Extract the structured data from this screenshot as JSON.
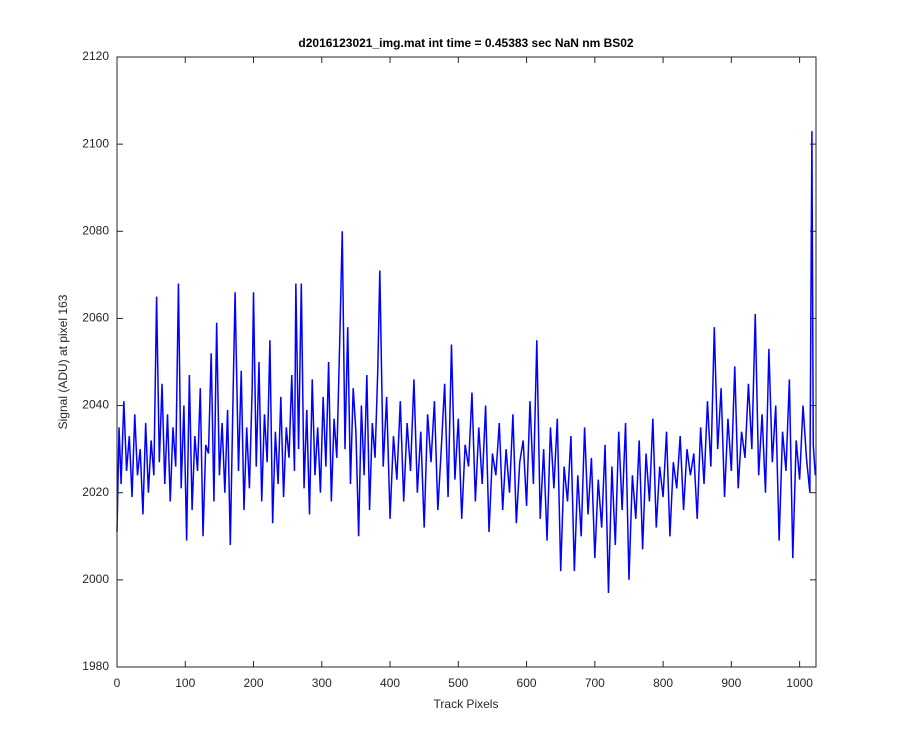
{
  "chart_data": {
    "type": "line",
    "title": "d2016123021_img.mat int time = 0.45383 sec  NaN nm BS02",
    "x_label": "Track Pixels",
    "y_label": "Signal (ADU) at pixel 163",
    "xlim": [
      0,
      1024
    ],
    "ylim": [
      1980,
      2120
    ],
    "xticks": [
      0,
      100,
      200,
      300,
      400,
      500,
      600,
      700,
      800,
      900,
      1000
    ],
    "yticks": [
      1980,
      2000,
      2020,
      2040,
      2060,
      2080,
      2100,
      2120
    ],
    "grid": false,
    "x": [
      0,
      3,
      6,
      10,
      14,
      18,
      22,
      26,
      30,
      34,
      38,
      42,
      46,
      50,
      54,
      58,
      62,
      66,
      70,
      74,
      78,
      82,
      86,
      90,
      94,
      98,
      102,
      106,
      110,
      114,
      118,
      122,
      126,
      130,
      134,
      138,
      142,
      146,
      150,
      154,
      158,
      162,
      166,
      170,
      173,
      178,
      182,
      186,
      190,
      194,
      198,
      200,
      204,
      208,
      212,
      216,
      220,
      224,
      228,
      232,
      236,
      240,
      244,
      248,
      252,
      256,
      260,
      262,
      266,
      270,
      274,
      278,
      282,
      286,
      290,
      294,
      298,
      302,
      306,
      310,
      314,
      318,
      322,
      326,
      330,
      334,
      338,
      342,
      346,
      350,
      354,
      358,
      362,
      366,
      370,
      374,
      378,
      382,
      385,
      390,
      395,
      400,
      405,
      410,
      415,
      420,
      425,
      430,
      435,
      440,
      445,
      450,
      455,
      460,
      465,
      470,
      475,
      480,
      485,
      490,
      495,
      500,
      505,
      510,
      515,
      520,
      525,
      530,
      535,
      540,
      545,
      550,
      555,
      560,
      565,
      570,
      575,
      580,
      585,
      590,
      595,
      600,
      605,
      610,
      615,
      620,
      625,
      630,
      635,
      640,
      645,
      650,
      655,
      660,
      665,
      670,
      675,
      680,
      685,
      690,
      695,
      700,
      705,
      710,
      715,
      720,
      725,
      730,
      735,
      740,
      745,
      750,
      755,
      760,
      765,
      770,
      775,
      780,
      785,
      790,
      795,
      800,
      805,
      810,
      815,
      820,
      825,
      830,
      835,
      840,
      845,
      850,
      855,
      860,
      865,
      870,
      875,
      880,
      885,
      890,
      895,
      900,
      905,
      910,
      915,
      920,
      925,
      930,
      935,
      940,
      945,
      950,
      955,
      960,
      965,
      970,
      975,
      980,
      985,
      990,
      995,
      1000,
      1005,
      1010,
      1015,
      1018,
      1020,
      1023
    ],
    "series": [
      {
        "color": "#0000ff",
        "values": [
          2011,
          2035,
          2022,
          2041,
          2025,
          2033,
          2019,
          2038,
          2024,
          2030,
          2015,
          2036,
          2020,
          2032,
          2024,
          2065,
          2027,
          2045,
          2022,
          2038,
          2018,
          2035,
          2026,
          2068,
          2021,
          2040,
          2009,
          2047,
          2016,
          2033,
          2025,
          2044,
          2010,
          2031,
          2029,
          2052,
          2018,
          2059,
          2024,
          2036,
          2020,
          2039,
          2008,
          2042,
          2066,
          2025,
          2048,
          2016,
          2035,
          2021,
          2044,
          2066,
          2026,
          2050,
          2018,
          2038,
          2027,
          2055,
          2013,
          2034,
          2022,
          2042,
          2019,
          2035,
          2028,
          2047,
          2025,
          2068,
          2030,
          2068,
          2021,
          2039,
          2015,
          2046,
          2024,
          2035,
          2020,
          2042,
          2026,
          2050,
          2018,
          2037,
          2028,
          2053,
          2080,
          2030,
          2058,
          2022,
          2044,
          2034,
          2010,
          2040,
          2024,
          2047,
          2016,
          2036,
          2028,
          2048,
          2071,
          2026,
          2042,
          2014,
          2033,
          2023,
          2041,
          2018,
          2036,
          2025,
          2046,
          2020,
          2034,
          2012,
          2038,
          2027,
          2041,
          2016,
          2030,
          2045,
          2019,
          2054,
          2023,
          2037,
          2014,
          2031,
          2026,
          2043,
          2018,
          2035,
          2022,
          2040,
          2011,
          2029,
          2024,
          2036,
          2016,
          2030,
          2020,
          2038,
          2013,
          2027,
          2032,
          2017,
          2041,
          2022,
          2055,
          2014,
          2030,
          2009,
          2035,
          2021,
          2037,
          2002,
          2026,
          2018,
          2033,
          2002,
          2024,
          2010,
          2035,
          2015,
          2028,
          2005,
          2023,
          2012,
          2031,
          1997,
          2026,
          2008,
          2034,
          2016,
          2036,
          2000,
          2024,
          2014,
          2032,
          2007,
          2029,
          2018,
          2037,
          2012,
          2026,
          2019,
          2034,
          2010,
          2027,
          2021,
          2033,
          2016,
          2030,
          2024,
          2029,
          2014,
          2035,
          2022,
          2041,
          2026,
          2058,
          2030,
          2044,
          2019,
          2037,
          2025,
          2049,
          2021,
          2034,
          2028,
          2045,
          2030,
          2061,
          2024,
          2038,
          2020,
          2053,
          2027,
          2040,
          2009,
          2034,
          2025,
          2046,
          2005,
          2032,
          2023,
          2040,
          2028,
          2020,
          2103,
          2031,
          2024
        ]
      }
    ]
  }
}
